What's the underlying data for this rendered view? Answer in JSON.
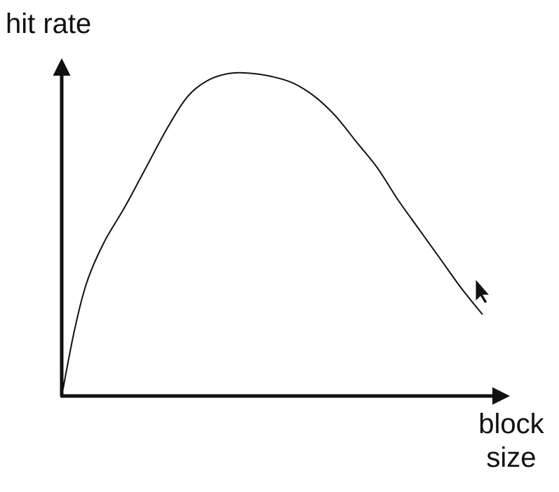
{
  "chart_data": {
    "type": "line",
    "xlabel": "block size",
    "xlabel_lines": [
      "block",
      "size"
    ],
    "ylabel": "hit rate",
    "ticks": "none",
    "grid": false,
    "legend": "none",
    "xlim": [
      0,
      100
    ],
    "ylim": [
      0,
      100
    ],
    "series": [
      {
        "color": "#111111",
        "x": [
          0,
          3,
          6,
          10,
          15,
          20,
          25,
          30,
          35,
          40,
          45,
          50,
          55,
          60,
          65,
          70,
          75,
          80,
          85,
          90,
          95,
          100
        ],
        "y": [
          0,
          20,
          35,
          47,
          58,
          70,
          82,
          92,
          97,
          99,
          99,
          98,
          96,
          92,
          86,
          78,
          70,
          60,
          51,
          42,
          33,
          25
        ]
      }
    ]
  },
  "cursor": {
    "icon": "mouse-pointer-icon"
  }
}
